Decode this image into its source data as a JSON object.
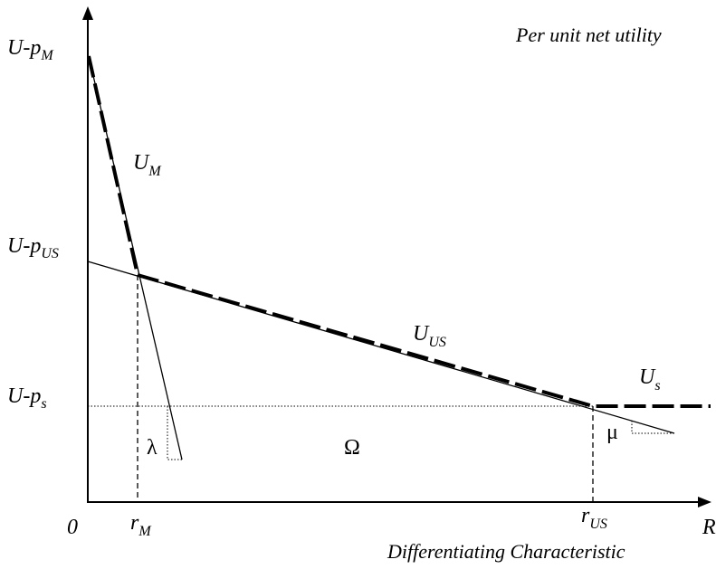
{
  "axes": {
    "y_title": "Per unit net utility",
    "x_title": "Differentiating Characteristic",
    "origin": "0",
    "x_end": "R"
  },
  "y_ticks": {
    "pm": {
      "base": "U-p",
      "sub": "M"
    },
    "pus": {
      "base": "U-p",
      "sub": "US"
    },
    "ps": {
      "base": "U-p",
      "sub": "s"
    }
  },
  "x_ticks": {
    "rm": {
      "base": "r",
      "sub": "M"
    },
    "rus": {
      "base": "r",
      "sub": "US"
    }
  },
  "curves": {
    "um": {
      "base": "U",
      "sub": "M"
    },
    "uus": {
      "base": "U",
      "sub": "US"
    },
    "us": {
      "base": "U",
      "sub": "s"
    }
  },
  "symbols": {
    "lambda": "λ",
    "omega": "Ω",
    "mu": "μ"
  }
}
